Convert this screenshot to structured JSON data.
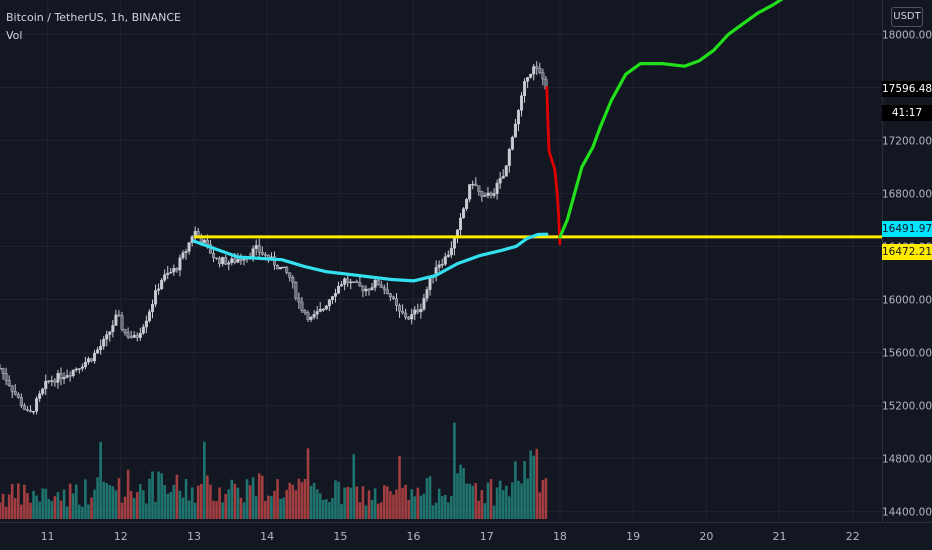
{
  "legend": {
    "symbol": "Bitcoin / TetherUS, 1h, BINANCE",
    "indicator": "Vol"
  },
  "currency_label": "USDT",
  "price_tags": {
    "last_price": "17596.48",
    "countdown": "41:17",
    "cyan_level": "16491.97",
    "yellow_level": "16472.21"
  },
  "colors": {
    "background": "#131722",
    "grid": "#1f2430",
    "candle": "#c9ccd4",
    "volume_up": "#26a69a",
    "volume_down": "#ef5350",
    "horizontal_line": "#ffeb00",
    "moving_average": "#33e0f0",
    "projection_down": "#e00000",
    "projection_up": "#22e01a"
  },
  "chart_data": {
    "type": "candlestick",
    "title": "Bitcoin / TetherUS, 1h, BINANCE",
    "x_axis": {
      "unit": "day",
      "range": [
        10.35,
        22.4
      ],
      "ticks": [
        11,
        12,
        13,
        14,
        15,
        16,
        17,
        18,
        19,
        20,
        21,
        22
      ]
    },
    "y_axis": {
      "unit": "USDT",
      "range": [
        14320,
        18260
      ],
      "ticks": [
        14400,
        14800,
        15200,
        15600,
        16000,
        16400,
        16800,
        17200,
        17600,
        18000
      ]
    },
    "price_path": [
      [
        10.35,
        15480
      ],
      [
        10.6,
        15250
      ],
      [
        10.75,
        15120
      ],
      [
        11.0,
        15380
      ],
      [
        11.3,
        15450
      ],
      [
        11.6,
        15560
      ],
      [
        11.8,
        15700
      ],
      [
        11.95,
        15880
      ],
      [
        12.05,
        15750
      ],
      [
        12.2,
        15700
      ],
      [
        12.35,
        15860
      ],
      [
        12.55,
        16150
      ],
      [
        12.75,
        16230
      ],
      [
        12.9,
        16380
      ],
      [
        13.0,
        16520
      ],
      [
        13.15,
        16420
      ],
      [
        13.3,
        16300
      ],
      [
        13.5,
        16280
      ],
      [
        13.7,
        16330
      ],
      [
        13.85,
        16380
      ],
      [
        14.0,
        16320
      ],
      [
        14.15,
        16250
      ],
      [
        14.3,
        16180
      ],
      [
        14.45,
        15950
      ],
      [
        14.6,
        15850
      ],
      [
        14.75,
        15920
      ],
      [
        14.9,
        16050
      ],
      [
        15.05,
        16150
      ],
      [
        15.2,
        16100
      ],
      [
        15.35,
        16080
      ],
      [
        15.5,
        16130
      ],
      [
        15.65,
        16060
      ],
      [
        15.8,
        15900
      ],
      [
        15.95,
        15860
      ],
      [
        16.1,
        15950
      ],
      [
        16.3,
        16250
      ],
      [
        16.45,
        16320
      ],
      [
        16.6,
        16500
      ],
      [
        16.7,
        16720
      ],
      [
        16.8,
        16900
      ],
      [
        16.95,
        16750
      ],
      [
        17.1,
        16820
      ],
      [
        17.25,
        16950
      ],
      [
        17.35,
        17250
      ],
      [
        17.45,
        17450
      ],
      [
        17.55,
        17700
      ],
      [
        17.65,
        17750
      ],
      [
        17.75,
        17680
      ],
      [
        17.82,
        17600
      ]
    ],
    "volume_path": [
      [
        10.35,
        25
      ],
      [
        11.0,
        26
      ],
      [
        11.6,
        30
      ],
      [
        12.0,
        38
      ],
      [
        12.4,
        35
      ],
      [
        13.0,
        32
      ],
      [
        13.5,
        34
      ],
      [
        14.0,
        36
      ],
      [
        14.5,
        30
      ],
      [
        15.0,
        28
      ],
      [
        15.5,
        26
      ],
      [
        16.0,
        27
      ],
      [
        16.3,
        32
      ],
      [
        16.6,
        42
      ],
      [
        17.0,
        30
      ],
      [
        17.3,
        34
      ],
      [
        17.55,
        62
      ],
      [
        17.82,
        40
      ]
    ],
    "volume_max": 150,
    "horizontal_level": 16472.21,
    "moving_average": [
      [
        13.0,
        16440
      ],
      [
        13.3,
        16380
      ],
      [
        13.6,
        16320
      ],
      [
        13.9,
        16310
      ],
      [
        14.2,
        16300
      ],
      [
        14.5,
        16250
      ],
      [
        14.8,
        16210
      ],
      [
        15.1,
        16190
      ],
      [
        15.4,
        16170
      ],
      [
        15.7,
        16150
      ],
      [
        16.0,
        16140
      ],
      [
        16.3,
        16180
      ],
      [
        16.6,
        16270
      ],
      [
        16.9,
        16330
      ],
      [
        17.2,
        16370
      ],
      [
        17.4,
        16400
      ],
      [
        17.55,
        16460
      ],
      [
        17.7,
        16490
      ],
      [
        17.82,
        16491.97
      ]
    ],
    "projection_down": [
      [
        17.82,
        17600
      ],
      [
        17.84,
        17280
      ],
      [
        17.85,
        17120
      ],
      [
        17.93,
        16980
      ],
      [
        17.96,
        16820
      ],
      [
        17.98,
        16650
      ],
      [
        18.0,
        16420
      ]
    ],
    "projection_up": [
      [
        18.0,
        16470
      ],
      [
        18.1,
        16600
      ],
      [
        18.2,
        16800
      ],
      [
        18.3,
        17000
      ],
      [
        18.45,
        17150
      ],
      [
        18.55,
        17300
      ],
      [
        18.7,
        17500
      ],
      [
        18.9,
        17700
      ],
      [
        19.1,
        17780
      ],
      [
        19.4,
        17780
      ],
      [
        19.7,
        17760
      ],
      [
        19.9,
        17800
      ],
      [
        20.1,
        17880
      ],
      [
        20.3,
        18000
      ],
      [
        20.5,
        18080
      ],
      [
        20.7,
        18160
      ],
      [
        20.9,
        18220
      ],
      [
        21.1,
        18290
      ]
    ]
  }
}
